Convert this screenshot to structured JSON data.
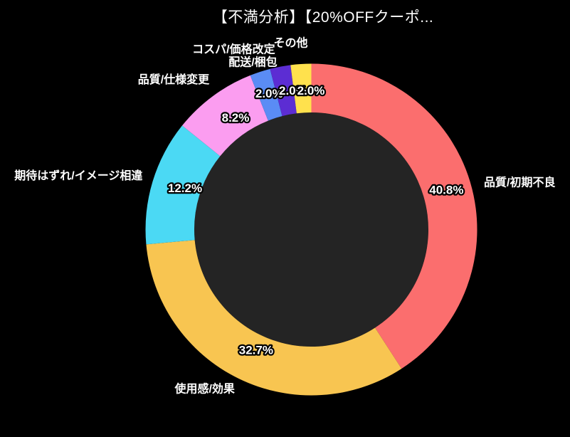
{
  "title": "【不満分析】【20%OFFクーポ...",
  "colors": {
    "background": "#000000",
    "hole": "#242424",
    "title_text": "#ffffff",
    "label_text": "#ffffff",
    "label_outline": "#000000"
  },
  "chart_data": {
    "type": "pie",
    "subtype": "donut",
    "title": "【不満分析】【20%OFFクーポ...",
    "legend": "none",
    "labels_position": "outside",
    "start_angle_deg": 0,
    "direction": "clockwise",
    "categories": [
      "品質/初期不良",
      "使用感/効果",
      "期待はずれ/イメージ相違",
      "品質/仕様変更",
      "コスパ/価格改定",
      "配送/梱包",
      "その他"
    ],
    "values": [
      40.8,
      32.7,
      12.2,
      8.2,
      2.0,
      2.0,
      2.0
    ],
    "percent_labels": [
      "40.8%",
      "32.7%",
      "12.2%",
      "8.2%",
      "2.0%",
      "2.0%",
      "2.0%"
    ],
    "slice_colors": [
      "#fb6e6e",
      "#f8c551",
      "#4bd9f4",
      "#fb9df0",
      "#5a8cf5",
      "#5c2dd3",
      "#ffe14d"
    ]
  }
}
